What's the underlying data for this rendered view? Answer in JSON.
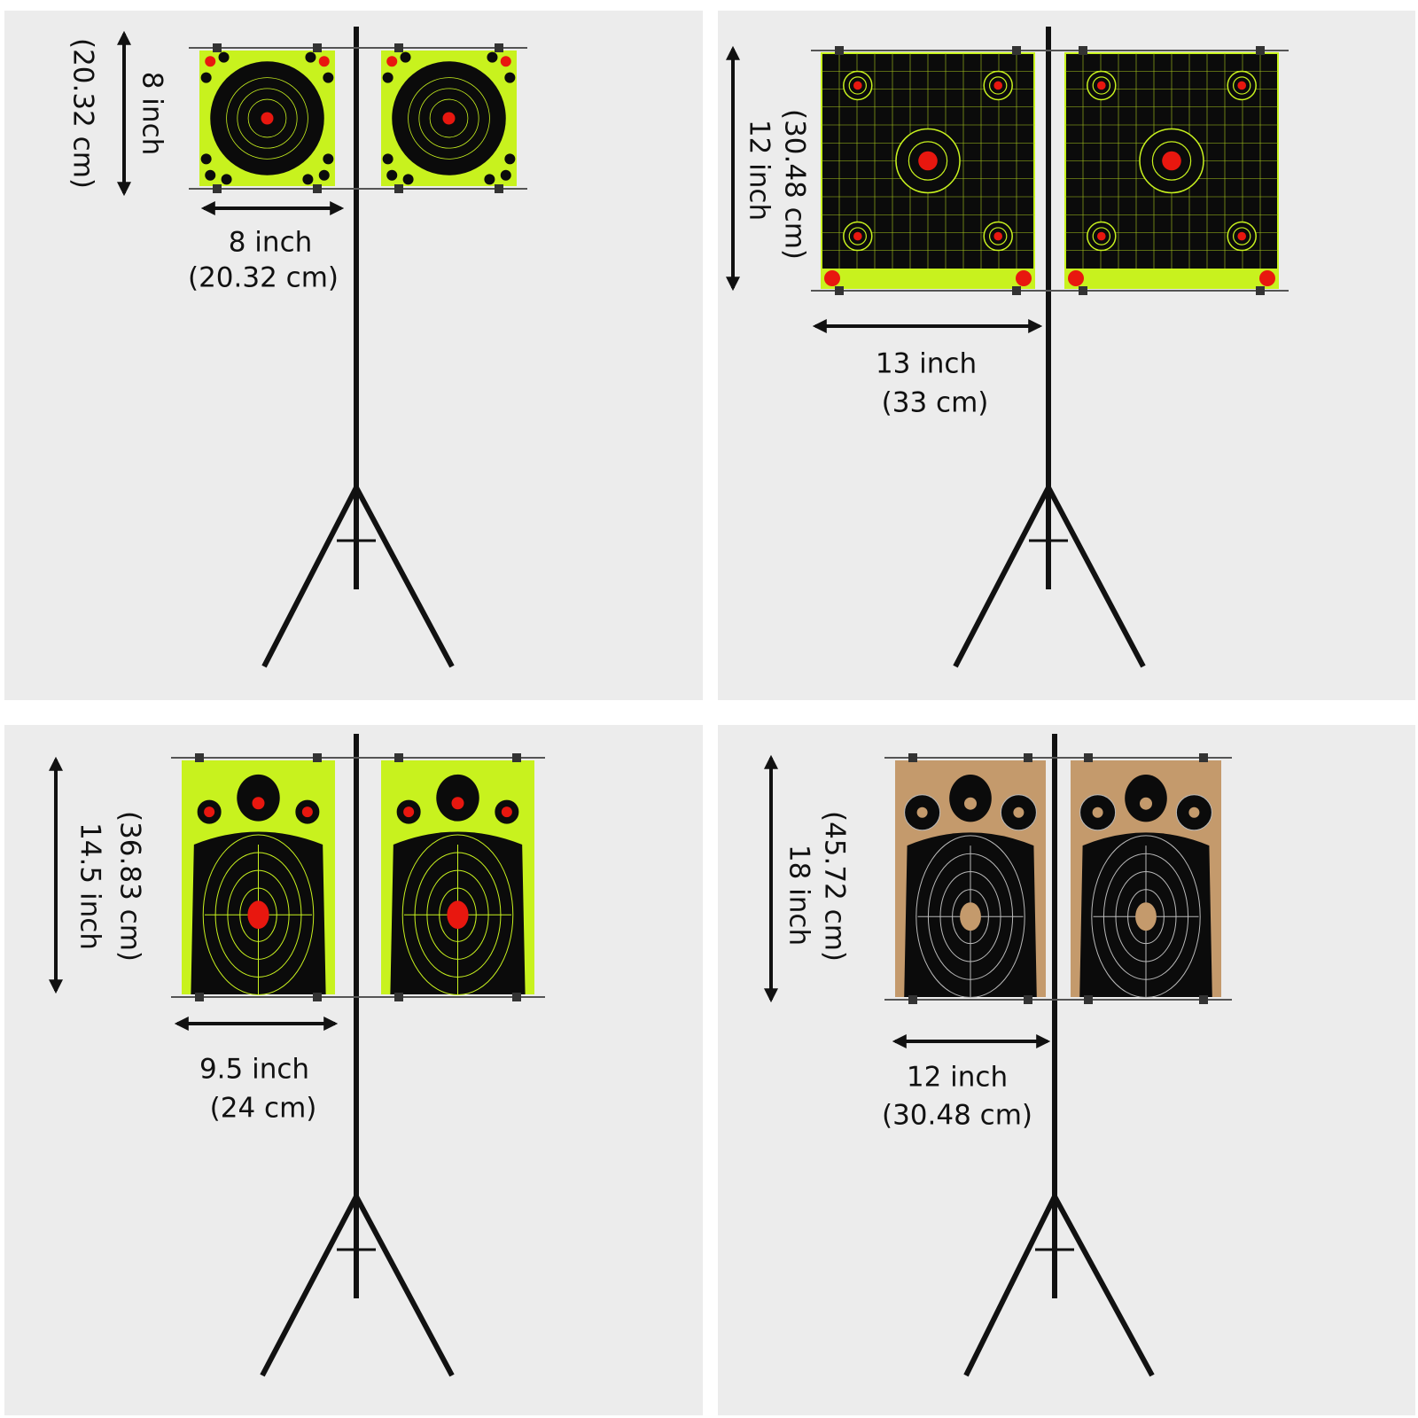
{
  "panels": [
    {
      "height": {
        "inch": "8 inch",
        "cm": "(20.32 cm)"
      },
      "width": {
        "inch": "8 inch",
        "cm": "(20.32 cm)"
      }
    },
    {
      "height": {
        "inch": "12 inch",
        "cm": "(30.48 cm)"
      },
      "width": {
        "inch": "13 inch",
        "cm": "(33 cm)"
      }
    },
    {
      "height": {
        "inch": "14.5 inch",
        "cm": "(36.83 cm)"
      },
      "width": {
        "inch": "9.5 inch",
        "cm": "(24 cm)"
      }
    },
    {
      "height": {
        "inch": "18 inch",
        "cm": "(45.72 cm)"
      },
      "width": {
        "inch": "12 inch",
        "cm": "(30.48 cm)"
      }
    }
  ]
}
